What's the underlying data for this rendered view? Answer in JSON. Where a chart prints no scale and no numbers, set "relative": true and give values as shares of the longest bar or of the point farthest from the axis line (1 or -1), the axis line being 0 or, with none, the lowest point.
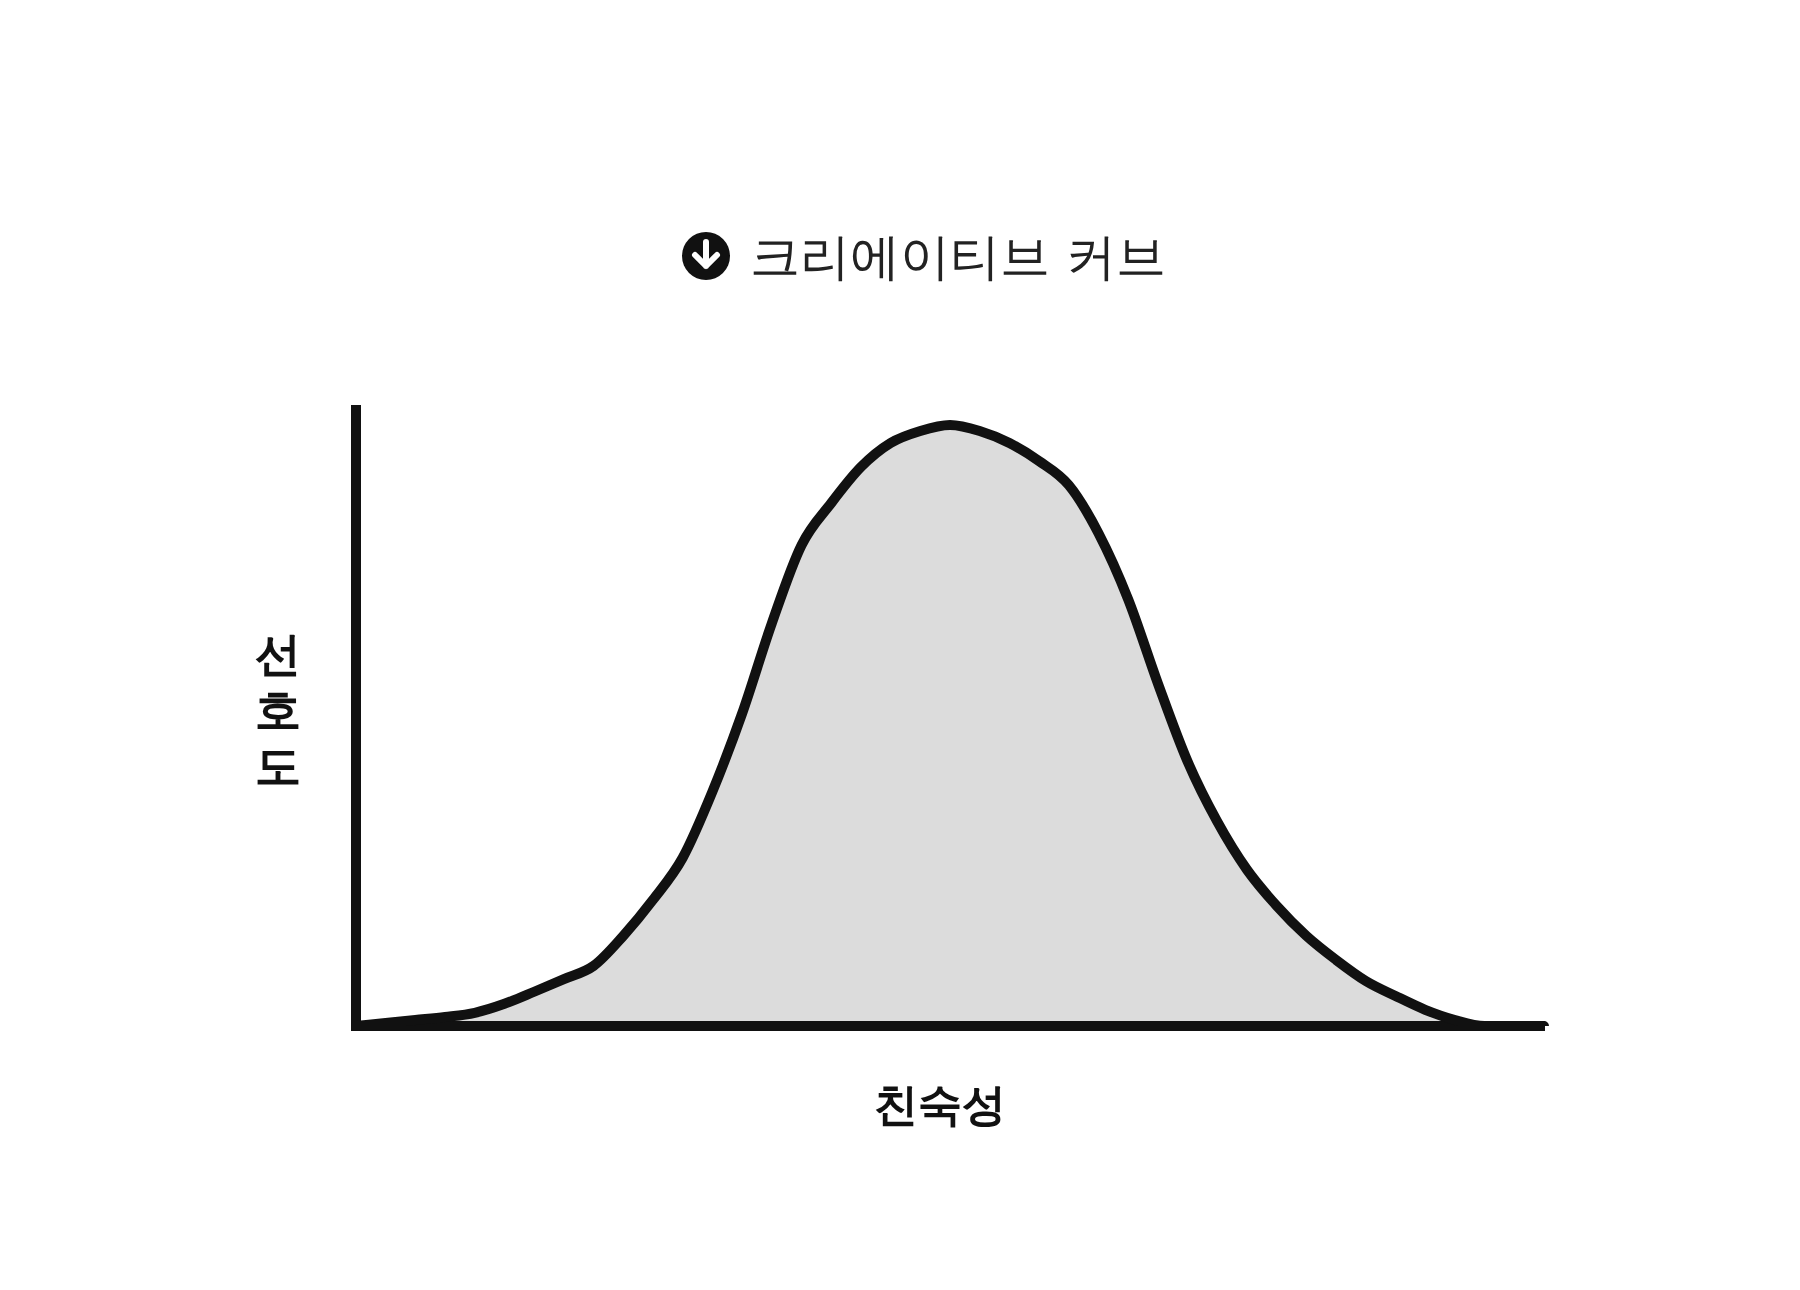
{
  "chart_data": {
    "type": "area",
    "title": "크리에이티브 커브",
    "xlabel": "친숙성",
    "ylabel": "선호도",
    "relative": true,
    "categories": [
      null,
      null,
      null,
      null,
      null,
      null,
      null,
      null,
      null,
      null,
      null,
      null,
      null,
      null,
      null,
      null,
      null,
      null,
      null,
      null,
      null,
      null,
      null,
      null,
      null,
      null,
      null,
      null,
      null,
      null,
      null,
      null,
      null,
      null,
      null,
      null,
      null,
      null,
      null,
      null,
      null
    ],
    "values": [
      0,
      0.005,
      0.01,
      0.015,
      0.022,
      0.037,
      0.057,
      0.078,
      0.1,
      0.15,
      0.21,
      0.28,
      0.39,
      0.52,
      0.67,
      0.8,
      0.87,
      0.93,
      0.97,
      0.99,
      1,
      0.99,
      0.97,
      0.94,
      0.9,
      0.82,
      0.71,
      0.57,
      0.44,
      0.34,
      0.26,
      0.2,
      0.15,
      0.11,
      0.075,
      0.05,
      0.027,
      0.01,
      0,
      0,
      0
    ],
    "color": "#111111"
  }
}
